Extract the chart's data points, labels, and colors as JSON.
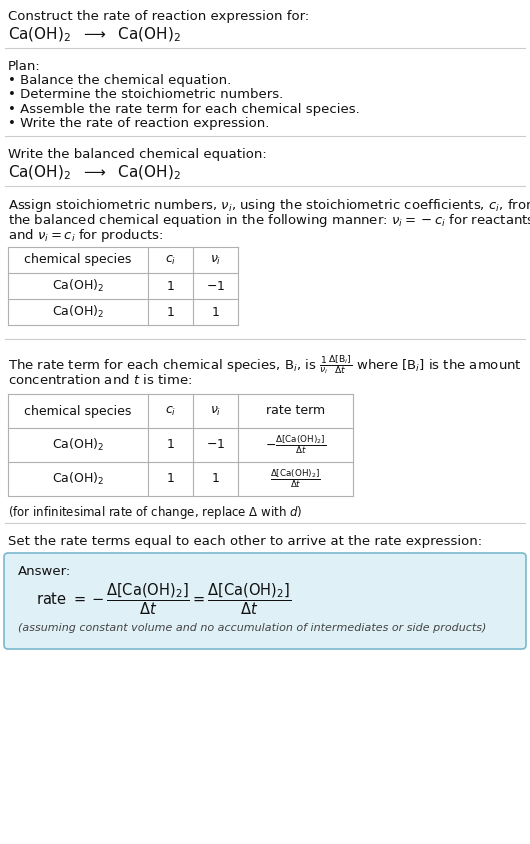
{
  "bg_color": "#ffffff",
  "text_color": "#111111",
  "gray_text": "#444444",
  "line_color": "#cccccc",
  "section1_title": "Construct the rate of reaction expression for:",
  "plan_title": "Plan:",
  "plan_items": [
    "• Balance the chemical equation.",
    "• Determine the stoichiometric numbers.",
    "• Assemble the rate term for each chemical species.",
    "• Write the rate of reaction expression."
  ],
  "balanced_title": "Write the balanced chemical equation:",
  "stoich_intro_line1": "Assign stoichiometric numbers, $\\nu_i$, using the stoichiometric coefficients, $c_i$, from",
  "stoich_intro_line2": "the balanced chemical equation in the following manner: $\\nu_i = -c_i$ for reactants",
  "stoich_intro_line3": "and $\\nu_i = c_i$ for products:",
  "table1_headers": [
    "chemical species",
    "$c_i$",
    "$\\nu_i$"
  ],
  "table1_rows": [
    [
      "Ca(OH)$_2$",
      "1",
      "$-1$"
    ],
    [
      "Ca(OH)$_2$",
      "1",
      "1"
    ]
  ],
  "rate_intro_line1": "The rate term for each chemical species, B$_i$, is $\\frac{1}{\\nu_i}\\frac{\\Delta[\\mathrm{B}_i]}{\\Delta t}$ where [B$_i$] is the amount",
  "rate_intro_line2": "concentration and $t$ is time:",
  "table2_headers": [
    "chemical species",
    "$c_i$",
    "$\\nu_i$",
    "rate term"
  ],
  "table2_row1_cols": [
    "Ca(OH)$_2$",
    "1",
    "$-1$",
    "$-\\frac{\\Delta[\\mathrm{Ca(OH)_2}]}{\\Delta t}$"
  ],
  "table2_row2_cols": [
    "Ca(OH)$_2$",
    "1",
    "1",
    "$\\frac{\\Delta[\\mathrm{Ca(OH)_2}]}{\\Delta t}$"
  ],
  "infinitesimal_note": "(for infinitesimal rate of change, replace $\\Delta$ with $d$)",
  "set_equal_text": "Set the rate terms equal to each other to arrive at the rate expression:",
  "answer_label": "Answer:",
  "answer_note": "(assuming constant volume and no accumulation of intermediates or side products)",
  "answer_box_color": "#dff0f7",
  "answer_box_border": "#7ab8cc",
  "fs_body": 9.5,
  "fs_table": 9.0,
  "fs_small": 8.5,
  "fs_reaction": 11.0
}
